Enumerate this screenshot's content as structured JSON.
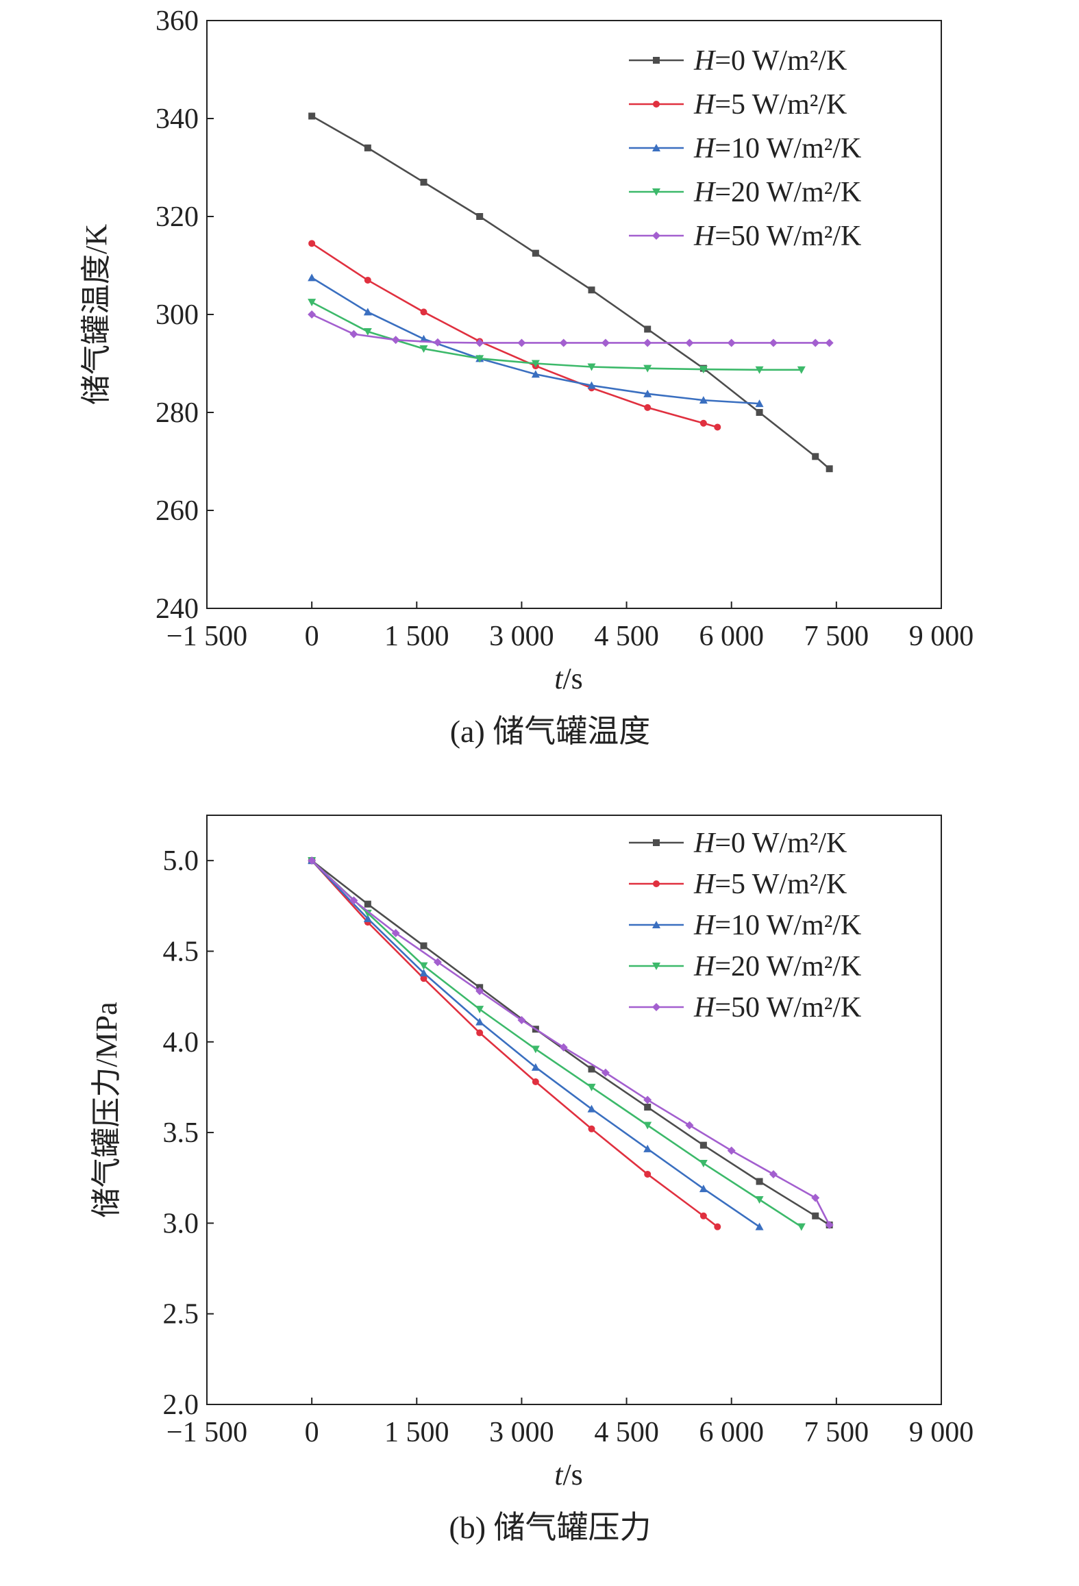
{
  "chart_data": [
    {
      "type": "line",
      "xlabel_italic": "t",
      "xlabel_unit": "/s",
      "ylabel": "储气罐温度/K",
      "caption": "(a) 储气罐温度",
      "xlim": [
        -1500,
        9000
      ],
      "ylim": [
        240,
        360
      ],
      "xticks": [
        -1500,
        0,
        1500,
        3000,
        4500,
        6000,
        7500,
        9000
      ],
      "xtick_labels": [
        "−1 500",
        "0",
        "1 500",
        "3 000",
        "4 500",
        "6 000",
        "7 500",
        "9 000"
      ],
      "yticks": [
        240,
        260,
        280,
        300,
        320,
        340,
        360
      ],
      "ytick_labels": [
        "240",
        "260",
        "280",
        "300",
        "320",
        "340",
        "360"
      ],
      "legend_position": "top-right",
      "series": [
        {
          "name_italic": "H",
          "name_rest": "=0 W/m²/K",
          "color": "#4d4d4d",
          "marker": "square",
          "x": [
            0,
            800,
            1600,
            2400,
            3200,
            4000,
            4800,
            5600,
            6400,
            7200,
            7400
          ],
          "y": [
            340.5,
            334,
            327,
            320,
            312.5,
            305,
            297,
            289,
            280,
            271,
            268.5
          ]
        },
        {
          "name_italic": "H",
          "name_rest": "=5 W/m²/K",
          "color": "#e0303f",
          "marker": "circle",
          "x": [
            0,
            800,
            1600,
            2400,
            3200,
            4000,
            4800,
            5600,
            5800
          ],
          "y": [
            314.5,
            307,
            300.5,
            294.5,
            289.5,
            285,
            281,
            277.8,
            277
          ]
        },
        {
          "name_italic": "H",
          "name_rest": "=10 W/m²/K",
          "color": "#3a6fc0",
          "marker": "triangle-up",
          "x": [
            0,
            800,
            1600,
            2400,
            3200,
            4000,
            4800,
            5600,
            6400
          ],
          "y": [
            307.5,
            300.5,
            295,
            291,
            287.8,
            285.5,
            283.8,
            282.5,
            281.8
          ]
        },
        {
          "name_italic": "H",
          "name_rest": "=20 W/m²/K",
          "color": "#3cb96a",
          "marker": "triangle-down",
          "x": [
            0,
            800,
            1600,
            2400,
            3200,
            4000,
            4800,
            5600,
            6400,
            7000
          ],
          "y": [
            302.5,
            296.5,
            293,
            291,
            290,
            289.3,
            289,
            288.8,
            288.7,
            288.7
          ]
        },
        {
          "name_italic": "H",
          "name_rest": "=50 W/m²/K",
          "color": "#a35fcf",
          "marker": "diamond",
          "x": [
            0,
            600,
            1200,
            1800,
            2400,
            3000,
            3600,
            4200,
            4800,
            5400,
            6000,
            6600,
            7200,
            7400
          ],
          "y": [
            300,
            296,
            294.8,
            294.3,
            294.2,
            294.2,
            294.2,
            294.2,
            294.2,
            294.2,
            294.2,
            294.2,
            294.2,
            294.2
          ]
        }
      ]
    },
    {
      "type": "line",
      "xlabel_italic": "t",
      "xlabel_unit": "/s",
      "ylabel": "储气罐压力/MPa",
      "caption": "(b) 储气罐压力",
      "xlim": [
        -1500,
        9000
      ],
      "ylim": [
        2.0,
        5.25
      ],
      "xticks": [
        -1500,
        0,
        1500,
        3000,
        4500,
        6000,
        7500,
        9000
      ],
      "xtick_labels": [
        "−1 500",
        "0",
        "1 500",
        "3 000",
        "4 500",
        "6 000",
        "7 500",
        "9 000"
      ],
      "yticks": [
        2.0,
        2.5,
        3.0,
        3.5,
        4.0,
        4.5,
        5.0
      ],
      "ytick_labels": [
        "2.0",
        "2.5",
        "3.0",
        "3.5",
        "4.0",
        "4.5",
        "5.0"
      ],
      "legend_position": "top-right",
      "series": [
        {
          "name_italic": "H",
          "name_rest": "=0 W/m²/K",
          "color": "#4d4d4d",
          "marker": "square",
          "x": [
            0,
            800,
            1600,
            2400,
            3200,
            4000,
            4800,
            5600,
            6400,
            7200,
            7400
          ],
          "y": [
            5.0,
            4.76,
            4.53,
            4.3,
            4.07,
            3.85,
            3.64,
            3.43,
            3.23,
            3.04,
            2.99
          ]
        },
        {
          "name_italic": "H",
          "name_rest": "=5 W/m²/K",
          "color": "#e0303f",
          "marker": "circle",
          "x": [
            0,
            800,
            1600,
            2400,
            3200,
            4000,
            4800,
            5600,
            5800
          ],
          "y": [
            5.0,
            4.66,
            4.35,
            4.05,
            3.78,
            3.52,
            3.27,
            3.04,
            2.98
          ]
        },
        {
          "name_italic": "H",
          "name_rest": "=10 W/m²/K",
          "color": "#3a6fc0",
          "marker": "triangle-up",
          "x": [
            0,
            800,
            1600,
            2400,
            3200,
            4000,
            4800,
            5600,
            6400
          ],
          "y": [
            5.0,
            4.68,
            4.38,
            4.11,
            3.86,
            3.63,
            3.41,
            3.19,
            2.98
          ]
        },
        {
          "name_italic": "H",
          "name_rest": "=20 W/m²/K",
          "color": "#3cb96a",
          "marker": "triangle-down",
          "x": [
            0,
            800,
            1600,
            2400,
            3200,
            4000,
            4800,
            5600,
            6400,
            7000
          ],
          "y": [
            5.0,
            4.71,
            4.42,
            4.18,
            3.96,
            3.75,
            3.54,
            3.33,
            3.13,
            2.98
          ]
        },
        {
          "name_italic": "H",
          "name_rest": "=50 W/m²/K",
          "color": "#a35fcf",
          "marker": "diamond",
          "x": [
            0,
            600,
            1200,
            1800,
            2400,
            3000,
            3600,
            4200,
            4800,
            5400,
            6000,
            6600,
            7200,
            7400
          ],
          "y": [
            5.0,
            4.78,
            4.6,
            4.44,
            4.28,
            4.12,
            3.97,
            3.83,
            3.68,
            3.54,
            3.4,
            3.27,
            3.14,
            2.99
          ]
        }
      ]
    }
  ]
}
